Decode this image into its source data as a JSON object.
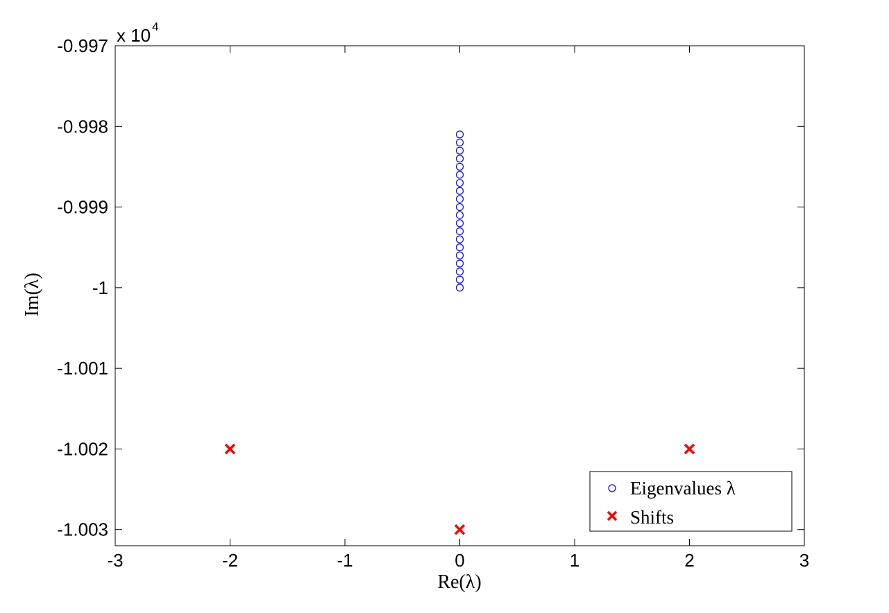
{
  "chart_data": {
    "type": "scatter",
    "xlabel": "Re(λ)",
    "ylabel": "Im(λ)",
    "xlim": [
      -3,
      3
    ],
    "ylim": [
      -1.0032,
      -0.997
    ],
    "y_scale_multiplier": "x 10",
    "y_scale_exponent": "4",
    "x_ticks": [
      "-3",
      "-2",
      "-1",
      "0",
      "1",
      "2",
      "3"
    ],
    "y_ticks": [
      "-0.997",
      "-0.998",
      "-0.999",
      "-1",
      "-1.001",
      "-1.002",
      "-1.003"
    ],
    "y_tick_values": [
      -0.997,
      -0.998,
      -0.999,
      -1,
      -1.001,
      -1.002,
      -1.003
    ],
    "x_tick_values": [
      -3,
      -2,
      -1,
      0,
      1,
      2,
      3
    ],
    "grid": false,
    "legend_position": "bottom-right",
    "series": [
      {
        "name": "Eigenvalues λ",
        "marker": "circle",
        "color": "#0000ff",
        "x": [
          0,
          0,
          0,
          0,
          0,
          0,
          0,
          0,
          0,
          0,
          0,
          0,
          0,
          0,
          0,
          0,
          0,
          0,
          0,
          0
        ],
        "y": [
          -0.9981,
          -0.9982,
          -0.9983,
          -0.9984,
          -0.9985,
          -0.9986,
          -0.9987,
          -0.9988,
          -0.9989,
          -0.999,
          -0.9991,
          -0.9992,
          -0.9993,
          -0.9994,
          -0.9995,
          -0.9996,
          -0.9997,
          -0.9998,
          -0.9999,
          -1.0
        ]
      },
      {
        "name": "Shifts",
        "marker": "x",
        "color": "#ff0000",
        "x": [
          -2,
          0,
          2
        ],
        "y": [
          -1.002,
          -1.003,
          -1.002
        ]
      }
    ]
  }
}
